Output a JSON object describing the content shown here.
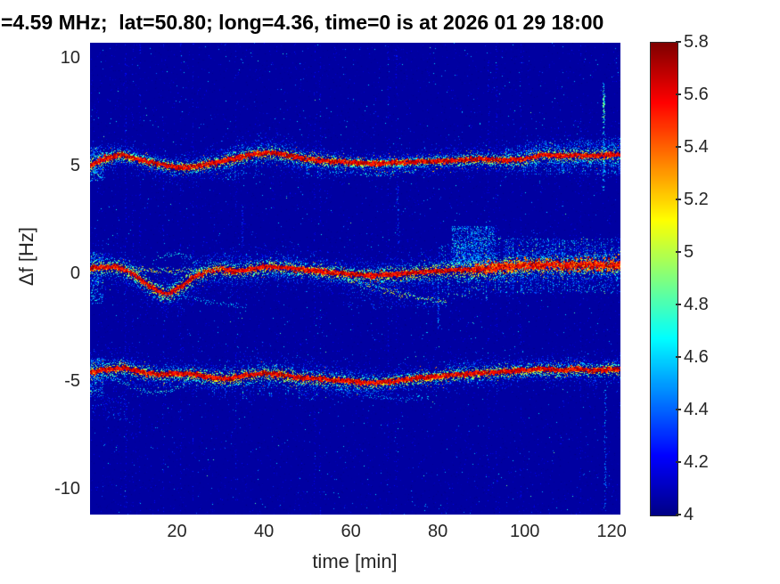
{
  "chart_data": {
    "type": "heatmap",
    "subtype": "doppler-spectrogram",
    "title": "=4.59 MHz;  lat=50.80; long=4.36, time=0 is at 2026 01 29 18:00",
    "xlabel": "time [min]",
    "ylabel": "Δf [Hz]",
    "xlim": [
      0,
      122
    ],
    "ylim": [
      -11.2,
      10.7
    ],
    "clim": [
      4,
      5.8
    ],
    "xticks": [
      20,
      40,
      60,
      80,
      100,
      120
    ],
    "yticks": [
      10,
      5,
      0,
      -5,
      -10
    ],
    "colorbar_tick_labels": [
      "5.8",
      "5.6",
      "5.4",
      "5.2",
      "5",
      "4.8",
      "4.6",
      "4.4",
      "4.2",
      "4"
    ],
    "colorbar_tick_values": [
      5.8,
      5.6,
      5.4,
      5.2,
      5,
      4.8,
      4.6,
      4.4,
      4.2,
      4
    ],
    "legend": "none",
    "grid": false,
    "colormap": "jet",
    "colormap_stops": [
      [
        0.0,
        0,
        0,
        134
      ],
      [
        0.125,
        0,
        0,
        255
      ],
      [
        0.375,
        0,
        255,
        255
      ],
      [
        0.625,
        255,
        255,
        0
      ],
      [
        0.875,
        255,
        0,
        0
      ],
      [
        1.0,
        128,
        0,
        0
      ]
    ],
    "axis_text_color": "#262626",
    "title_color": "#000000",
    "background_value": 4.05,
    "seed": 42,
    "noise": {
      "speckle_low": 12000,
      "speckle_mid": 900,
      "speckle_high": 90,
      "faint_columns": 16,
      "column_dots": 90
    },
    "bands": [
      {
        "name": "upper-echo-near-plus-5Hz",
        "trace": [
          [
            0,
            5.0
          ],
          [
            3,
            5.3
          ],
          [
            7,
            5.5
          ],
          [
            11,
            5.3
          ],
          [
            15,
            5.1
          ],
          [
            20,
            4.9
          ],
          [
            24,
            4.95
          ],
          [
            28,
            5.1
          ],
          [
            33,
            5.3
          ],
          [
            38,
            5.55
          ],
          [
            42,
            5.6
          ],
          [
            46,
            5.45
          ],
          [
            50,
            5.3
          ],
          [
            55,
            5.2
          ],
          [
            60,
            5.15
          ],
          [
            66,
            5.1
          ],
          [
            72,
            5.15
          ],
          [
            78,
            5.2
          ],
          [
            84,
            5.25
          ],
          [
            90,
            5.3
          ],
          [
            96,
            5.25
          ],
          [
            100,
            5.3
          ],
          [
            104,
            5.5
          ],
          [
            108,
            5.45
          ],
          [
            112,
            5.5
          ],
          [
            116,
            5.45
          ],
          [
            120,
            5.5
          ],
          [
            122,
            5.5
          ]
        ],
        "sigma": [
          [
            0,
            0.45
          ],
          [
            10,
            0.3
          ],
          [
            20,
            0.35
          ],
          [
            30,
            0.4
          ],
          [
            40,
            0.45
          ],
          [
            50,
            0.4
          ],
          [
            60,
            0.3
          ],
          [
            70,
            0.25
          ],
          [
            80,
            0.3
          ],
          [
            90,
            0.35
          ],
          [
            100,
            0.4
          ],
          [
            110,
            0.45
          ],
          [
            122,
            0.5
          ]
        ],
        "halo_density": 2.0,
        "striations": [
          {
            "t0": 95,
            "t1": 122,
            "prob": 0.55,
            "spread": 1.7,
            "count": 10,
            "vmax": 5.0,
            "off": 0
          },
          {
            "t0": 30,
            "t1": 55,
            "prob": 0.3,
            "spread": 1.9,
            "count": 8,
            "vmax": 4.9,
            "off": -0.45
          }
        ],
        "bold": null
      },
      {
        "name": "center-echo-near-0Hz",
        "trace": [
          [
            0,
            0.25
          ],
          [
            6,
            0.3
          ],
          [
            9,
            0.1
          ],
          [
            13,
            -0.5
          ],
          [
            16,
            -0.85
          ],
          [
            18,
            -0.95
          ],
          [
            21,
            -0.6
          ],
          [
            24,
            -0.15
          ],
          [
            27,
            0.1
          ],
          [
            30,
            0.2
          ],
          [
            33,
            0.1
          ],
          [
            36,
            0.15
          ],
          [
            40,
            0.3
          ],
          [
            45,
            0.25
          ],
          [
            50,
            0.15
          ],
          [
            55,
            0.05
          ],
          [
            60,
            -0.05
          ],
          [
            65,
            -0.1
          ],
          [
            70,
            -0.05
          ],
          [
            75,
            0.05
          ],
          [
            80,
            0.1
          ],
          [
            85,
            0.15
          ],
          [
            90,
            0.2
          ],
          [
            95,
            0.3
          ],
          [
            100,
            0.35
          ],
          [
            105,
            0.4
          ],
          [
            110,
            0.35
          ],
          [
            115,
            0.4
          ],
          [
            120,
            0.35
          ],
          [
            122,
            0.4
          ]
        ],
        "sigma": [
          [
            0,
            0.5
          ],
          [
            10,
            0.45
          ],
          [
            20,
            0.5
          ],
          [
            30,
            0.5
          ],
          [
            40,
            0.45
          ],
          [
            50,
            0.4
          ],
          [
            60,
            0.4
          ],
          [
            70,
            0.45
          ],
          [
            80,
            0.55
          ],
          [
            90,
            0.65
          ],
          [
            100,
            0.6
          ],
          [
            110,
            0.55
          ],
          [
            122,
            0.6
          ]
        ],
        "halo_density": 2.2,
        "striations": [
          {
            "t0": 80,
            "t1": 122,
            "prob": 0.65,
            "spread": 2.2,
            "count": 12,
            "vmax": 5.15,
            "off": 0
          },
          {
            "t0": 28,
            "t1": 50,
            "prob": 0.3,
            "spread": 1.6,
            "count": 8,
            "vmax": 4.9,
            "off": 0
          }
        ],
        "bold": [
          88,
          122
        ]
      },
      {
        "name": "lower-echo-near-minus-5Hz",
        "trace": [
          [
            0,
            -4.6
          ],
          [
            4,
            -4.45
          ],
          [
            8,
            -4.4
          ],
          [
            12,
            -4.6
          ],
          [
            16,
            -4.7
          ],
          [
            20,
            -4.65
          ],
          [
            24,
            -4.7
          ],
          [
            28,
            -4.85
          ],
          [
            32,
            -4.9
          ],
          [
            36,
            -4.75
          ],
          [
            40,
            -4.65
          ],
          [
            44,
            -4.7
          ],
          [
            48,
            -4.85
          ],
          [
            52,
            -4.9
          ],
          [
            56,
            -4.95
          ],
          [
            60,
            -5.0
          ],
          [
            64,
            -5.1
          ],
          [
            68,
            -5.05
          ],
          [
            72,
            -4.95
          ],
          [
            76,
            -4.85
          ],
          [
            80,
            -4.8
          ],
          [
            84,
            -4.7
          ],
          [
            88,
            -4.65
          ],
          [
            92,
            -4.6
          ],
          [
            96,
            -4.55
          ],
          [
            100,
            -4.5
          ],
          [
            104,
            -4.45
          ],
          [
            108,
            -4.5
          ],
          [
            112,
            -4.45
          ],
          [
            116,
            -4.5
          ],
          [
            120,
            -4.45
          ],
          [
            122,
            -4.5
          ]
        ],
        "sigma": [
          [
            0,
            0.5
          ],
          [
            10,
            0.4
          ],
          [
            20,
            0.35
          ],
          [
            30,
            0.45
          ],
          [
            40,
            0.5
          ],
          [
            50,
            0.45
          ],
          [
            60,
            0.4
          ],
          [
            70,
            0.35
          ],
          [
            80,
            0.35
          ],
          [
            90,
            0.4
          ],
          [
            100,
            0.35
          ],
          [
            110,
            0.35
          ],
          [
            122,
            0.4
          ]
        ],
        "halo_density": 2.0,
        "striations": [
          {
            "t0": 28,
            "t1": 60,
            "prob": 0.35,
            "spread": 1.8,
            "count": 8,
            "vmax": 4.95,
            "off": -0.35
          },
          {
            "t0": 80,
            "t1": 115,
            "prob": 0.3,
            "spread": 1.5,
            "count": 7,
            "vmax": 4.85,
            "off": 0.2
          }
        ],
        "bold": null
      }
    ],
    "secondary_traces": [
      {
        "name": "center-upper-branch",
        "points": [
          [
            8,
            0.25
          ],
          [
            14,
            0.15
          ],
          [
            20,
            0.1
          ],
          [
            26,
            0.15
          ],
          [
            30,
            0.25
          ]
        ],
        "sigma": 0.08,
        "density": 0.9,
        "vmin": 4.6,
        "vmax": 5.3
      },
      {
        "name": "center-upper-arc",
        "points": [
          [
            14,
            0.5
          ],
          [
            17,
            0.85
          ],
          [
            20,
            0.95
          ],
          [
            23,
            0.7
          ],
          [
            25,
            0.5
          ]
        ],
        "sigma": 0.07,
        "density": 0.5,
        "vmin": 4.4,
        "vmax": 4.8
      },
      {
        "name": "center-deep-filament",
        "points": [
          [
            17,
            -0.95
          ],
          [
            22,
            -1.1
          ],
          [
            27,
            -1.3
          ],
          [
            32,
            -1.45
          ],
          [
            36,
            -1.5
          ]
        ],
        "sigma": 0.06,
        "density": 0.45,
        "vmin": 4.35,
        "vmax": 4.7
      },
      {
        "name": "center-right-descender",
        "points": [
          [
            58,
            -0.25
          ],
          [
            64,
            -0.55
          ],
          [
            70,
            -0.85
          ],
          [
            76,
            -1.15
          ],
          [
            82,
            -1.35
          ]
        ],
        "sigma": 0.09,
        "density": 0.85,
        "vmin": 4.5,
        "vmax": 5.3
      },
      {
        "name": "upper-band-subtrace",
        "points": [
          [
            55,
            4.75
          ],
          [
            60,
            4.68
          ],
          [
            65,
            4.62
          ],
          [
            70,
            4.68
          ],
          [
            75,
            4.75
          ]
        ],
        "sigma": 0.07,
        "density": 0.5,
        "vmin": 4.4,
        "vmax": 4.8
      },
      {
        "name": "lower-band-loop",
        "points": [
          [
            3,
            -4.7
          ],
          [
            7,
            -5.0
          ],
          [
            11,
            -5.4
          ],
          [
            15,
            -5.55
          ],
          [
            19,
            -5.4
          ],
          [
            23,
            -5.0
          ],
          [
            26,
            -4.85
          ]
        ],
        "sigma": 0.07,
        "density": 0.6,
        "vmin": 4.4,
        "vmax": 4.9
      },
      {
        "name": "lower-right-subtrace",
        "points": [
          [
            55,
            -5.3
          ],
          [
            61,
            -5.5
          ],
          [
            67,
            -5.75
          ],
          [
            73,
            -5.8
          ],
          [
            78,
            -5.7
          ]
        ],
        "sigma": 0.08,
        "density": 0.5,
        "vmin": 4.3,
        "vmax": 4.7
      }
    ],
    "clouds": [
      {
        "t0": 83,
        "t1": 93,
        "f0": 0.3,
        "f1": 2.2,
        "n": 900,
        "vmin": 4.35,
        "vmax": 4.95
      },
      {
        "t0": 95,
        "t1": 122,
        "f0": -0.9,
        "f1": 1.6,
        "n": 600,
        "vmin": 4.3,
        "vmax": 4.85
      },
      {
        "t0": 100,
        "t1": 122,
        "f0": 4.6,
        "f1": 6.2,
        "n": 350,
        "vmin": 4.3,
        "vmax": 4.8
      },
      {
        "t0": 58,
        "t1": 80,
        "f0": -1.6,
        "f1": -0.2,
        "n": 250,
        "vmin": 4.25,
        "vmax": 4.6
      },
      {
        "t0": 0,
        "t1": 3,
        "f0": -1.4,
        "f1": 1.0,
        "n": 260,
        "vmin": 4.3,
        "vmax": 5.1
      },
      {
        "t0": 0,
        "t1": 3,
        "f0": 4.3,
        "f1": 5.9,
        "n": 220,
        "vmin": 4.3,
        "vmax": 5.2
      },
      {
        "t0": 0,
        "t1": 3,
        "f0": -5.7,
        "f1": -3.9,
        "n": 220,
        "vmin": 4.3,
        "vmax": 5.2
      },
      {
        "t0": 0,
        "t1": 8,
        "f0": -6.8,
        "f1": -5.6,
        "n": 80,
        "vmin": 4.2,
        "vmax": 4.55
      }
    ],
    "streaks": [
      {
        "t": 118.1,
        "f0": 3.8,
        "f1": 9.0,
        "n": 130,
        "vmin": 4.3,
        "vmax": 4.85
      },
      {
        "t": 118.1,
        "f0": 7.2,
        "f1": 8.3,
        "n": 55,
        "vmin": 4.65,
        "vmax": 5.05
      },
      {
        "t": 118.4,
        "f0": -11.0,
        "f1": -5.4,
        "n": 90,
        "vmin": 4.2,
        "vmax": 4.6
      },
      {
        "t": 80.0,
        "f0": -2.6,
        "f1": 0.4,
        "n": 70,
        "vmin": 4.2,
        "vmax": 4.55
      },
      {
        "t": 70.8,
        "f0": 1.4,
        "f1": 4.2,
        "n": 45,
        "vmin": 4.15,
        "vmax": 4.45
      },
      {
        "t": 35.0,
        "f0": 1.2,
        "f1": 3.0,
        "n": 40,
        "vmin": 4.15,
        "vmax": 4.4
      }
    ]
  }
}
